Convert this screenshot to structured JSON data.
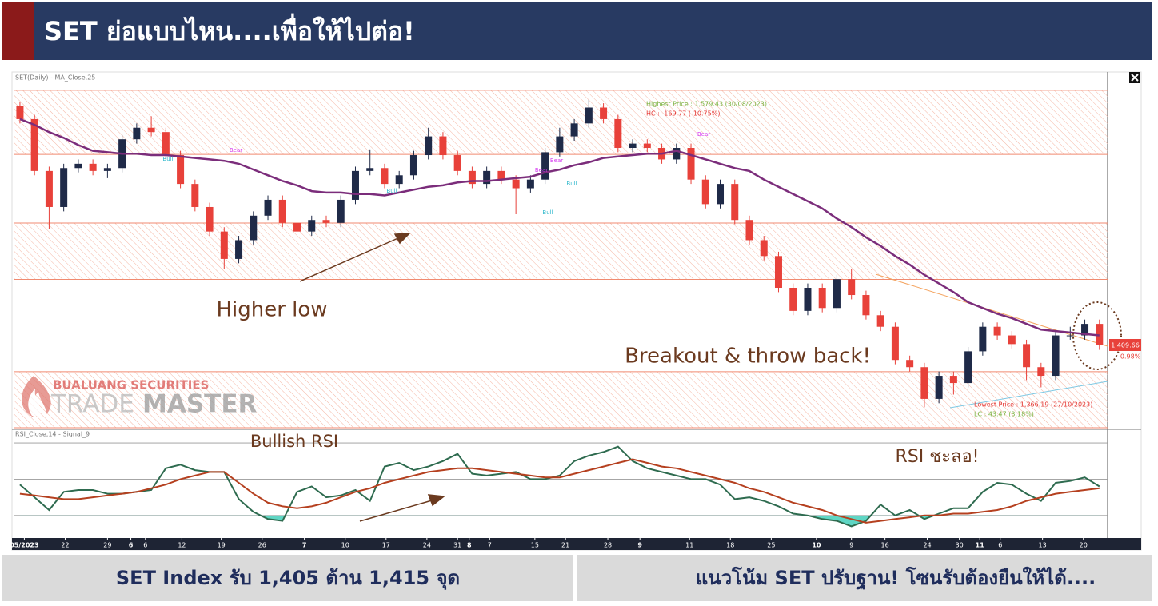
{
  "header": {
    "title": "SET ย่อแบบไหน....เพื่อให้ไปต่อ!"
  },
  "watermark": {
    "company": "BUALUANG SECURITIES",
    "trade": "TRADE",
    "master": "MASTER"
  },
  "chart_data": {
    "type": "candlestick",
    "legend": "SET(Daily) - MA_Close,25",
    "ylim": [
      1352,
      1597
    ],
    "xlim": [
      -0.38,
      74.56
    ],
    "xticks": [
      {
        "value": 0.3,
        "label": "05/2023"
      },
      {
        "value": 3.1,
        "label": "22"
      },
      {
        "value": 6,
        "label": "29"
      },
      {
        "value": 7.6,
        "label": "6"
      },
      {
        "value": 8.6,
        "label": "6"
      },
      {
        "value": 11.1,
        "label": "12"
      },
      {
        "value": 13.8,
        "label": "19"
      },
      {
        "value": 16.6,
        "label": "26"
      },
      {
        "value": 19.5,
        "label": "7"
      },
      {
        "value": 22.3,
        "label": "10"
      },
      {
        "value": 25.1,
        "label": "17"
      },
      {
        "value": 27.9,
        "label": "24"
      },
      {
        "value": 30,
        "label": "31"
      },
      {
        "value": 30.8,
        "label": "8"
      },
      {
        "value": 32.2,
        "label": "7"
      },
      {
        "value": 35.3,
        "label": "15"
      },
      {
        "value": 37.4,
        "label": "21"
      },
      {
        "value": 40.3,
        "label": "28"
      },
      {
        "value": 42.5,
        "label": "9"
      },
      {
        "value": 45.9,
        "label": "11"
      },
      {
        "value": 48.7,
        "label": "18"
      },
      {
        "value": 51.5,
        "label": "25"
      },
      {
        "value": 54.6,
        "label": "10"
      },
      {
        "value": 57,
        "label": "9"
      },
      {
        "value": 59.3,
        "label": "16"
      },
      {
        "value": 62.2,
        "label": "24"
      },
      {
        "value": 64.4,
        "label": "30"
      },
      {
        "value": 65.8,
        "label": "11"
      },
      {
        "value": 67.2,
        "label": "6"
      },
      {
        "value": 70.1,
        "label": "13"
      },
      {
        "value": 72.9,
        "label": "20"
      }
    ],
    "colors": {
      "up": "#1f2a48",
      "down": "#e8413a"
    },
    "candles": [
      [
        1575,
        1578,
        1563,
        1566
      ],
      [
        1566,
        1569,
        1527,
        1530
      ],
      [
        1530,
        1533,
        1490,
        1505
      ],
      [
        1505,
        1535,
        1502,
        1532
      ],
      [
        1532,
        1538,
        1529,
        1535
      ],
      [
        1535,
        1538,
        1527,
        1530
      ],
      [
        1530,
        1535,
        1525,
        1532
      ],
      [
        1532,
        1555,
        1529,
        1552
      ],
      [
        1552,
        1563,
        1549,
        1560
      ],
      [
        1560,
        1568,
        1554,
        1557
      ],
      [
        1557,
        1560,
        1538,
        1541
      ],
      [
        1541,
        1544,
        1518,
        1521
      ],
      [
        1521,
        1524,
        1502,
        1505
      ],
      [
        1505,
        1508,
        1485,
        1488
      ],
      [
        1488,
        1491,
        1462,
        1469
      ],
      [
        1469,
        1485,
        1466,
        1482
      ],
      [
        1482,
        1502,
        1479,
        1499
      ],
      [
        1499,
        1513,
        1496,
        1510
      ],
      [
        1510,
        1513,
        1491,
        1494
      ],
      [
        1494,
        1497,
        1475,
        1488
      ],
      [
        1488,
        1499,
        1485,
        1496
      ],
      [
        1496,
        1499,
        1491,
        1494
      ],
      [
        1494,
        1513,
        1491,
        1510
      ],
      [
        1510,
        1533,
        1507,
        1530
      ],
      [
        1530,
        1545,
        1527,
        1532
      ],
      [
        1532,
        1535,
        1518,
        1521
      ],
      [
        1521,
        1530,
        1518,
        1527
      ],
      [
        1527,
        1544,
        1524,
        1541
      ],
      [
        1541,
        1560,
        1538,
        1554
      ],
      [
        1554,
        1557,
        1538,
        1541
      ],
      [
        1541,
        1544,
        1527,
        1530
      ],
      [
        1530,
        1533,
        1518,
        1521
      ],
      [
        1521,
        1533,
        1518,
        1530
      ],
      [
        1530,
        1533,
        1521,
        1524
      ],
      [
        1524,
        1527,
        1500,
        1518
      ],
      [
        1518,
        1527,
        1515,
        1524
      ],
      [
        1524,
        1546,
        1521,
        1543
      ],
      [
        1543,
        1560,
        1540,
        1554
      ],
      [
        1554,
        1566,
        1551,
        1563
      ],
      [
        1563,
        1579.43,
        1560,
        1574
      ],
      [
        1574,
        1577,
        1563,
        1566
      ],
      [
        1566,
        1569,
        1543,
        1546
      ],
      [
        1546,
        1552,
        1543,
        1549
      ],
      [
        1549,
        1552,
        1543,
        1546
      ],
      [
        1546,
        1549,
        1535,
        1538
      ],
      [
        1538,
        1549,
        1535,
        1546
      ],
      [
        1546,
        1549,
        1521,
        1524
      ],
      [
        1524,
        1527,
        1504,
        1507
      ],
      [
        1507,
        1524,
        1504,
        1521
      ],
      [
        1521,
        1524,
        1493,
        1496
      ],
      [
        1496,
        1499,
        1479,
        1482
      ],
      [
        1482,
        1485,
        1468,
        1471
      ],
      [
        1471,
        1474,
        1446,
        1449
      ],
      [
        1449,
        1452,
        1430,
        1433
      ],
      [
        1433,
        1452,
        1430,
        1449
      ],
      [
        1449,
        1452,
        1432,
        1435
      ],
      [
        1435,
        1458,
        1432,
        1455
      ],
      [
        1455,
        1462,
        1441,
        1444
      ],
      [
        1444,
        1447,
        1427,
        1430
      ],
      [
        1430,
        1433,
        1419,
        1422
      ],
      [
        1422,
        1425,
        1396,
        1399
      ],
      [
        1399,
        1402,
        1391,
        1394
      ],
      [
        1394,
        1397,
        1366.19,
        1372
      ],
      [
        1372,
        1391,
        1369,
        1388
      ],
      [
        1388,
        1391,
        1375,
        1383
      ],
      [
        1383,
        1408,
        1380,
        1405
      ],
      [
        1405,
        1425,
        1402,
        1422
      ],
      [
        1422,
        1425,
        1413,
        1416
      ],
      [
        1416,
        1419,
        1407,
        1410
      ],
      [
        1410,
        1413,
        1385,
        1394
      ],
      [
        1394,
        1397,
        1380,
        1388
      ],
      [
        1388,
        1419,
        1385,
        1416
      ],
      [
        1416,
        1422,
        1413,
        1416
      ],
      [
        1416,
        1427,
        1413,
        1424
      ],
      [
        1424,
        1427,
        1406,
        1409.66
      ]
    ],
    "ma": {
      "color": "#7b2d7b",
      "values": [
        1566,
        1562,
        1557,
        1553,
        1548,
        1544,
        1543,
        1542,
        1542,
        1541,
        1541,
        1540,
        1539,
        1538,
        1537,
        1535,
        1531,
        1527,
        1523,
        1520,
        1516,
        1515,
        1515,
        1514,
        1514,
        1513,
        1515,
        1517,
        1519,
        1520,
        1522,
        1523,
        1523,
        1524,
        1525,
        1526,
        1529,
        1531,
        1534,
        1536,
        1539,
        1540,
        1541,
        1542,
        1542,
        1544,
        1541,
        1538,
        1535,
        1532,
        1530,
        1524,
        1519,
        1514,
        1509,
        1504,
        1497,
        1491,
        1484,
        1478,
        1471,
        1465,
        1458,
        1452,
        1446,
        1439,
        1435,
        1431,
        1428,
        1424,
        1420,
        1419,
        1418,
        1417,
        1416
      ]
    },
    "zones": [
      [
        1541.5,
        1586
      ],
      [
        1454.8,
        1493.9
      ],
      [
        1352,
        1390.9
      ]
    ],
    "zone_color": "#f08a70",
    "highest_label": "Highest Price : 1,579.43 (30/08/2023)",
    "hc_label": "HC : -169.77 (-10.75%)",
    "lowest_label": "Lowest Price : 1,366.19 (27/10/2023)",
    "lc_label": "LC : 43.47 (3.18%)",
    "last_price_label": "1,409.66",
    "change_label": "-0.98%",
    "signal_labels": [
      "Bull",
      "Bear",
      "Bull",
      "Bear",
      "Bear",
      "Bull",
      "Bull",
      "Bear"
    ],
    "annotations": [
      "Higher low",
      "Breakout & throw back!"
    ],
    "rsi": {
      "legend": "RSI_Close,14 - Signal_9",
      "ylim": [
        18,
        74
      ],
      "levels": [
        30,
        50,
        70
      ],
      "fill_color": "#5fd6c4",
      "series": [
        {
          "color": "#2e6b4f",
          "values": [
            47,
            40,
            33,
            43,
            44,
            44,
            42,
            42,
            43,
            44,
            56,
            58,
            55,
            54,
            54,
            39,
            32,
            28,
            27,
            43,
            46,
            40,
            41,
            44,
            38,
            57,
            59,
            55,
            57,
            60,
            64,
            53,
            52,
            53,
            54,
            50,
            50,
            52,
            60,
            63,
            65,
            68,
            60,
            56,
            54,
            52,
            50,
            50,
            47,
            39,
            40,
            38,
            35,
            31,
            30,
            28,
            27,
            24,
            27,
            36,
            30,
            33,
            28,
            31,
            34,
            34,
            43,
            48,
            47,
            42,
            38,
            48,
            49,
            51,
            46
          ]
        },
        {
          "color": "#b5401f",
          "values": [
            42,
            41,
            40,
            39,
            39,
            40,
            41,
            42,
            43,
            45,
            47,
            50,
            52,
            54,
            54,
            48,
            42,
            37,
            35,
            34,
            35,
            37,
            40,
            43,
            45,
            48,
            50,
            52,
            54,
            55,
            56,
            56,
            55,
            54,
            53,
            52,
            51,
            51,
            53,
            55,
            57,
            59,
            61,
            59,
            57,
            56,
            54,
            52,
            50,
            48,
            45,
            43,
            40,
            37,
            35,
            33,
            30,
            28,
            26,
            27,
            28,
            29,
            30,
            30,
            31,
            31,
            32,
            33,
            35,
            38,
            40,
            42,
            43,
            44,
            45
          ]
        }
      ],
      "annotations": [
        "Bullish RSI",
        "RSI ชะลอ!"
      ]
    }
  },
  "footer": {
    "left": "SET Index รับ 1,405 ต้าน 1,415 จุด",
    "right": "แนวโน้ม SET ปรับฐาน! โซนรับต้องยืนให้ได้...."
  }
}
